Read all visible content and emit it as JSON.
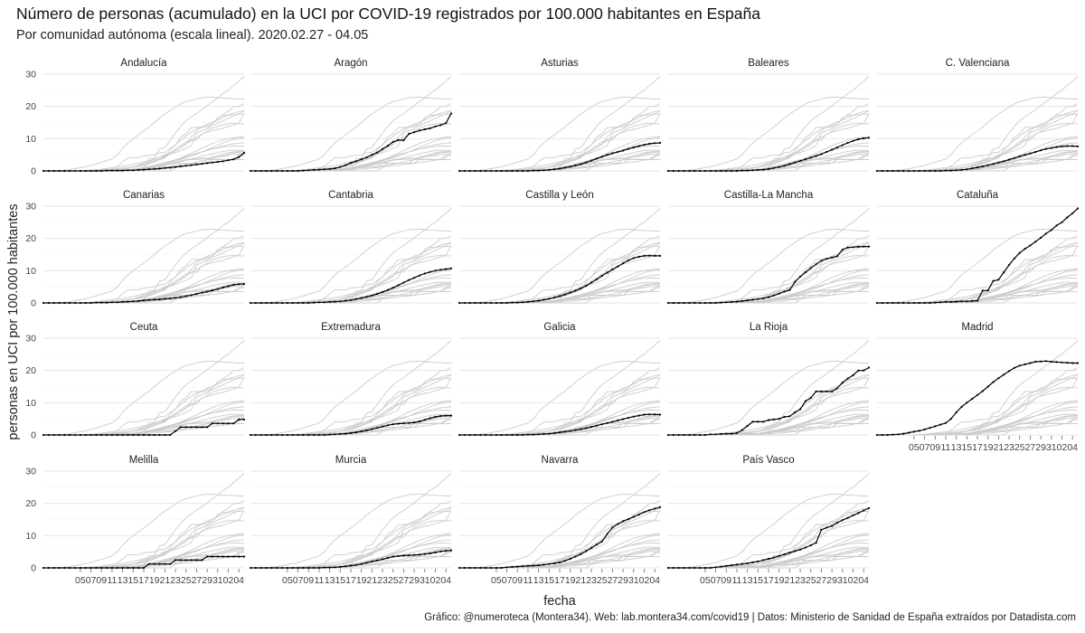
{
  "title": "Número de personas (acumulado) en la UCI por COVID-19 registrados por 100.000 habitantes en España",
  "subtitle": "Por comunidad autónoma (escala lineal). 2020.02.27 - 04.05",
  "caption": "Gráfico: @numeroteca (Montera34). Web: lab.montera34.com/covid19 | Datos: Ministerio de Sanidad de España extraídos por Datadista.com",
  "chart_data": {
    "type": "line",
    "layout": "small-multiples",
    "xlabel": "fecha",
    "ylabel": "personas en UCI por 100.000 habitantes",
    "ylim": [
      0,
      30
    ],
    "yticks": [
      0,
      10,
      20,
      30
    ],
    "xticks": [
      "05",
      "07",
      "09",
      "11",
      "13",
      "15",
      "17",
      "19",
      "21",
      "23",
      "25",
      "27",
      "29",
      "31",
      "02",
      "04"
    ],
    "x": [
      "2020-02-27",
      "2020-02-28",
      "2020-02-29",
      "2020-03-01",
      "2020-03-02",
      "2020-03-03",
      "2020-03-04",
      "2020-03-05",
      "2020-03-06",
      "2020-03-07",
      "2020-03-08",
      "2020-03-09",
      "2020-03-10",
      "2020-03-11",
      "2020-03-12",
      "2020-03-13",
      "2020-03-14",
      "2020-03-15",
      "2020-03-16",
      "2020-03-17",
      "2020-03-18",
      "2020-03-19",
      "2020-03-20",
      "2020-03-21",
      "2020-03-22",
      "2020-03-23",
      "2020-03-24",
      "2020-03-25",
      "2020-03-26",
      "2020-03-27",
      "2020-03-28",
      "2020-03-29",
      "2020-03-30",
      "2020-03-31",
      "2020-04-01",
      "2020-04-02",
      "2020-04-03",
      "2020-04-04",
      "2020-04-05"
    ],
    "grid": true,
    "background_series_color": "#cccccc",
    "highlight_color": "#000000",
    "series": [
      {
        "name": "Andalucía",
        "values": [
          0,
          0,
          0,
          0,
          0,
          0,
          0,
          0,
          0,
          0,
          0,
          0,
          0.1,
          0.1,
          0.1,
          0.1,
          0.2,
          0.2,
          0.3,
          0.4,
          0.5,
          0.6,
          0.7,
          0.9,
          1.0,
          1.2,
          1.4,
          1.6,
          1.8,
          2.0,
          2.2,
          2.4,
          2.6,
          2.8,
          3.0,
          3.3,
          3.6,
          4.3,
          5.6
        ]
      },
      {
        "name": "Aragón",
        "values": [
          0,
          0,
          0,
          0,
          0,
          0,
          0,
          0,
          0,
          0,
          0.1,
          0.2,
          0.3,
          0.4,
          0.5,
          0.6,
          0.8,
          1.2,
          1.8,
          2.5,
          3.0,
          3.6,
          4.2,
          5.0,
          5.7,
          6.8,
          7.8,
          9.0,
          9.6,
          9.5,
          11.5,
          12.0,
          12.5,
          12.9,
          13.2,
          13.8,
          14.2,
          14.8,
          17.8
        ]
      },
      {
        "name": "Asturias",
        "values": [
          0,
          0,
          0,
          0,
          0,
          0,
          0,
          0,
          0,
          0,
          0,
          0,
          0,
          0,
          0.1,
          0.1,
          0.2,
          0.3,
          0.5,
          0.7,
          1.0,
          1.3,
          1.7,
          2.1,
          2.6,
          3.2,
          3.8,
          4.4,
          5.0,
          5.5,
          5.9,
          6.3,
          6.8,
          7.3,
          7.7,
          8.1,
          8.4,
          8.6,
          8.7
        ]
      },
      {
        "name": "Baleares",
        "values": [
          0,
          0,
          0,
          0,
          0,
          0,
          0,
          0,
          0,
          0,
          0,
          0,
          0,
          0,
          0.1,
          0.1,
          0.2,
          0.3,
          0.4,
          0.6,
          0.9,
          1.2,
          1.6,
          2.1,
          2.6,
          3.1,
          3.6,
          4.1,
          4.6,
          5.2,
          5.9,
          6.6,
          7.3,
          8.0,
          8.7,
          9.3,
          9.8,
          10.1,
          10.3
        ]
      },
      {
        "name": "C. Valenciana",
        "values": [
          0,
          0,
          0,
          0,
          0,
          0,
          0,
          0,
          0,
          0,
          0,
          0,
          0,
          0.1,
          0.1,
          0.2,
          0.3,
          0.5,
          0.8,
          1.1,
          1.4,
          1.8,
          2.2,
          2.6,
          3.0,
          3.5,
          4.0,
          4.5,
          5.0,
          5.4,
          5.9,
          6.4,
          6.8,
          7.1,
          7.4,
          7.6,
          7.7,
          7.7,
          7.6
        ]
      },
      {
        "name": "Canarias",
        "values": [
          0,
          0,
          0,
          0,
          0,
          0,
          0,
          0,
          0,
          0,
          0.1,
          0.1,
          0.1,
          0.2,
          0.2,
          0.3,
          0.4,
          0.5,
          0.6,
          0.8,
          0.9,
          1.0,
          1.1,
          1.3,
          1.4,
          1.6,
          1.8,
          2.1,
          2.4,
          2.8,
          3.2,
          3.5,
          3.9,
          4.3,
          4.8,
          5.2,
          5.6,
          5.8,
          5.9
        ]
      },
      {
        "name": "Cantabria",
        "values": [
          0,
          0,
          0,
          0,
          0,
          0,
          0,
          0,
          0,
          0,
          0,
          0,
          0.1,
          0.2,
          0.2,
          0.3,
          0.4,
          0.5,
          0.7,
          0.9,
          1.2,
          1.5,
          1.9,
          2.3,
          2.8,
          3.4,
          4.0,
          4.7,
          5.5,
          6.3,
          7.1,
          7.8,
          8.5,
          9.1,
          9.6,
          10.0,
          10.3,
          10.5,
          10.7
        ]
      },
      {
        "name": "Castilla y León",
        "values": [
          0,
          0,
          0,
          0,
          0,
          0,
          0,
          0,
          0,
          0,
          0.1,
          0.1,
          0.2,
          0.3,
          0.5,
          0.7,
          1.0,
          1.3,
          1.7,
          2.1,
          2.6,
          3.2,
          3.8,
          4.5,
          5.3,
          6.3,
          7.3,
          8.4,
          9.4,
          10.4,
          11.3,
          12.3,
          13.2,
          13.9,
          14.3,
          14.6,
          14.7,
          14.6,
          14.6
        ]
      },
      {
        "name": "Castilla-La Mancha",
        "values": [
          0,
          0,
          0,
          0,
          0,
          0,
          0,
          0,
          0,
          0,
          0.1,
          0.2,
          0.3,
          0.4,
          0.6,
          0.8,
          1.0,
          1.2,
          1.4,
          1.8,
          2.3,
          2.9,
          3.5,
          4.0,
          6.5,
          8.2,
          9.5,
          10.8,
          12.0,
          13.1,
          13.7,
          14.1,
          14.5,
          16.5,
          17.2,
          17.3,
          17.4,
          17.5,
          17.5
        ]
      },
      {
        "name": "Cataluña",
        "values": [
          0,
          0,
          0,
          0,
          0,
          0,
          0,
          0,
          0,
          0,
          0,
          0.1,
          0.2,
          0.3,
          0.3,
          0.4,
          0.5,
          0.5,
          0.6,
          0.7,
          3.8,
          3.9,
          6.8,
          7.2,
          9.5,
          11.8,
          13.8,
          15.5,
          16.8,
          17.8,
          19.0,
          20.2,
          21.5,
          22.6,
          24.0,
          25.0,
          26.5,
          27.8,
          29.3
        ]
      },
      {
        "name": "Ceuta",
        "values": [
          0,
          0,
          0,
          0,
          0,
          0,
          0,
          0,
          0,
          0,
          0,
          0,
          0,
          0,
          0,
          0,
          0,
          0,
          0,
          0,
          0,
          0,
          0,
          0,
          0,
          1.2,
          2.4,
          2.4,
          2.4,
          2.4,
          2.4,
          2.4,
          3.6,
          3.6,
          3.6,
          3.6,
          3.6,
          4.8,
          4.8
        ]
      },
      {
        "name": "Extremadura",
        "values": [
          0,
          0,
          0,
          0,
          0,
          0,
          0,
          0,
          0,
          0,
          0,
          0,
          0,
          0,
          0,
          0.1,
          0.2,
          0.3,
          0.4,
          0.6,
          0.8,
          1.1,
          1.4,
          1.8,
          2.2,
          2.6,
          3.0,
          3.3,
          3.5,
          3.6,
          3.7,
          3.9,
          4.2,
          4.7,
          5.2,
          5.6,
          5.9,
          6.0,
          6.0
        ]
      },
      {
        "name": "Galicia",
        "values": [
          0,
          0,
          0,
          0,
          0,
          0,
          0,
          0,
          0,
          0,
          0,
          0,
          0,
          0.1,
          0.1,
          0.2,
          0.3,
          0.4,
          0.6,
          0.8,
          1.0,
          1.2,
          1.5,
          1.8,
          2.1,
          2.5,
          2.9,
          3.3,
          3.7,
          4.1,
          4.5,
          4.9,
          5.3,
          5.7,
          6.0,
          6.3,
          6.4,
          6.4,
          6.3
        ]
      },
      {
        "name": "La Rioja",
        "values": [
          0,
          0,
          0,
          0,
          0,
          0,
          0,
          0,
          0.2,
          0.2,
          0.3,
          0.4,
          0.4,
          0.6,
          1.5,
          2.8,
          4.1,
          4.1,
          4.1,
          4.6,
          4.8,
          5.0,
          5.6,
          5.8,
          7.0,
          8.0,
          10.5,
          11.5,
          13.5,
          13.5,
          13.5,
          13.5,
          14.5,
          16.2,
          17.5,
          18.5,
          20.0,
          20.0,
          20.9
        ]
      },
      {
        "name": "Madrid",
        "values": [
          0,
          0,
          0,
          0.1,
          0.2,
          0.4,
          0.7,
          1.0,
          1.3,
          1.7,
          2.2,
          2.7,
          3.2,
          3.7,
          5.0,
          7.0,
          8.7,
          10.0,
          11.2,
          12.4,
          13.6,
          15.0,
          16.4,
          17.6,
          18.7,
          19.8,
          20.8,
          21.5,
          21.9,
          22.3,
          22.7,
          22.8,
          22.9,
          22.7,
          22.6,
          22.5,
          22.4,
          22.3,
          22.3
        ]
      },
      {
        "name": "Melilla",
        "values": [
          0,
          0,
          0,
          0,
          0,
          0,
          0,
          0,
          0,
          0,
          0,
          0,
          0,
          0,
          0,
          0,
          0,
          0,
          0,
          0,
          1.2,
          1.2,
          1.2,
          1.2,
          1.2,
          2.4,
          2.4,
          2.4,
          2.4,
          2.4,
          2.4,
          3.5,
          3.5,
          3.5,
          3.5,
          3.5,
          3.5,
          3.5,
          3.5
        ]
      },
      {
        "name": "Murcia",
        "values": [
          0,
          0,
          0,
          0,
          0,
          0,
          0,
          0,
          0,
          0,
          0,
          0,
          0,
          0,
          0.1,
          0.1,
          0.2,
          0.3,
          0.5,
          0.7,
          0.9,
          1.2,
          1.6,
          2.0,
          2.3,
          2.7,
          3.1,
          3.5,
          3.7,
          3.8,
          3.9,
          4.0,
          4.1,
          4.3,
          4.5,
          4.8,
          5.1,
          5.3,
          5.4
        ]
      },
      {
        "name": "Navarra",
        "values": [
          0,
          0,
          0,
          0,
          0,
          0,
          0,
          0,
          0,
          0.2,
          0.3,
          0.4,
          0.5,
          0.6,
          0.7,
          0.8,
          1.0,
          1.2,
          1.4,
          1.7,
          2.2,
          2.8,
          3.5,
          4.3,
          5.2,
          6.2,
          7.2,
          8.2,
          10.5,
          12.5,
          13.6,
          14.5,
          15.1,
          15.8,
          16.5,
          17.3,
          17.9,
          18.4,
          18.8
        ]
      },
      {
        "name": "País Vasco",
        "values": [
          0,
          0,
          0,
          0,
          0,
          0,
          0,
          0,
          0,
          0.2,
          0.4,
          0.6,
          0.8,
          1.0,
          1.2,
          1.4,
          1.7,
          2.0,
          2.4,
          2.8,
          3.2,
          3.7,
          4.2,
          4.7,
          5.2,
          5.7,
          6.3,
          7.0,
          7.8,
          11.8,
          12.5,
          13.0,
          14.0,
          14.8,
          15.5,
          16.3,
          17.0,
          17.8,
          18.5
        ]
      }
    ]
  }
}
